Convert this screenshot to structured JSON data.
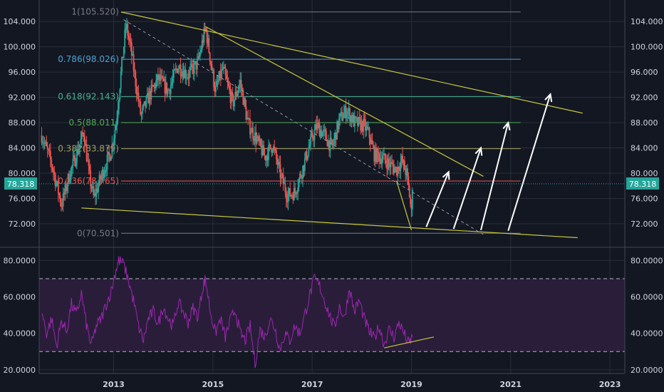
{
  "colors": {
    "background": "#131722",
    "grid": "#2a2e39",
    "axis_text": "#d1d4dc",
    "candle_up": "#26a69a",
    "candle_down": "#ef5350",
    "trendline": "#c8c83a",
    "rsi_line": "#9c27b0",
    "rsi_band": "#2a1d3a",
    "arrow": "#ffffff",
    "price_tag": "#26a69a"
  },
  "chart_data": [
    {
      "type": "candlestick",
      "name": "price",
      "x_ticks": [
        "2013",
        "2015",
        "2017",
        "2019",
        "2021",
        "2023"
      ],
      "y_ticks": [
        "72.000",
        "76.000",
        "80.000",
        "84.000",
        "88.000",
        "92.000",
        "96.000",
        "100.000",
        "104.000"
      ],
      "ylim": [
        68.5,
        106.5
      ],
      "xlim": [
        2011.5,
        2023.3
      ],
      "current_price": {
        "label": "78.318",
        "value": 78.318
      },
      "fibonacci": [
        {
          "label": "1(105.520)",
          "value": 105.52,
          "color": "#787b86"
        },
        {
          "label": "0.786(98.026)",
          "value": 98.026,
          "color": "#4fa3d1"
        },
        {
          "label": "0.618(92.143)",
          "value": 92.143,
          "color": "#4caf90"
        },
        {
          "label": "0.5(88.011)",
          "value": 88.011,
          "color": "#4caf50"
        },
        {
          "label": "0.382(83.879)",
          "value": 83.879,
          "color": "#a0a060"
        },
        {
          "label": "0.236(78.765)",
          "value": 78.765,
          "color": "#ef5350"
        },
        {
          "label": "0(70.501)",
          "value": 70.501,
          "color": "#787b86"
        }
      ],
      "trendlines": [
        {
          "x": [
            2013.15,
            2022.45
          ],
          "y": [
            105.5,
            89.5
          ]
        },
        {
          "x": [
            2012.35,
            2022.35
          ],
          "y": [
            74.5,
            69.8
          ]
        },
        {
          "x": [
            2014.85,
            2020.45
          ],
          "y": [
            103.2,
            79.5
          ]
        },
        {
          "x": [
            2018.7,
            2019.0
          ],
          "y": [
            78.8,
            71.0
          ]
        }
      ],
      "dashed_trendline": {
        "x": [
          2013.2,
          2020.45
        ],
        "y": [
          104.3,
          70.3
        ]
      },
      "projection_arrows": [
        {
          "x": [
            2019.3,
            2019.75
          ],
          "y": [
            71.5,
            80.2
          ]
        },
        {
          "x": [
            2019.85,
            2020.4
          ],
          "y": [
            71.2,
            84.0
          ]
        },
        {
          "x": [
            2020.4,
            2020.95
          ],
          "y": [
            71.0,
            88.0
          ]
        },
        {
          "x": [
            2020.95,
            2021.8
          ],
          "y": [
            70.9,
            92.5
          ]
        }
      ],
      "price_path": [
        [
          2011.55,
          86.0
        ],
        [
          2011.75,
          81.5
        ],
        [
          2011.95,
          75.0
        ],
        [
          2012.1,
          79.5
        ],
        [
          2012.25,
          83.0
        ],
        [
          2012.4,
          86.5
        ],
        [
          2012.5,
          80.0
        ],
        [
          2012.6,
          76.0
        ],
        [
          2012.75,
          79.5
        ],
        [
          2012.95,
          83.5
        ],
        [
          2013.05,
          88.0
        ],
        [
          2013.15,
          96.0
        ],
        [
          2013.25,
          103.5
        ],
        [
          2013.35,
          99.5
        ],
        [
          2013.45,
          94.0
        ],
        [
          2013.55,
          89.0
        ],
        [
          2013.7,
          92.0
        ],
        [
          2013.9,
          95.0
        ],
        [
          2014.1,
          93.0
        ],
        [
          2014.3,
          97.0
        ],
        [
          2014.5,
          95.5
        ],
        [
          2014.7,
          97.5
        ],
        [
          2014.85,
          103.0
        ],
        [
          2014.95,
          98.0
        ],
        [
          2015.05,
          93.0
        ],
        [
          2015.2,
          96.5
        ],
        [
          2015.4,
          91.0
        ],
        [
          2015.55,
          94.5
        ],
        [
          2015.7,
          88.0
        ],
        [
          2015.9,
          85.0
        ],
        [
          2016.05,
          82.5
        ],
        [
          2016.2,
          84.5
        ],
        [
          2016.35,
          80.0
        ],
        [
          2016.5,
          76.5
        ],
        [
          2016.65,
          77.0
        ],
        [
          2016.8,
          80.5
        ],
        [
          2016.95,
          84.5
        ],
        [
          2017.1,
          87.5
        ],
        [
          2017.25,
          86.0
        ],
        [
          2017.4,
          84.0
        ],
        [
          2017.55,
          88.5
        ],
        [
          2017.7,
          90.0
        ],
        [
          2017.85,
          88.0
        ],
        [
          2018.05,
          87.5
        ],
        [
          2018.15,
          86.0
        ],
        [
          2018.25,
          83.0
        ],
        [
          2018.4,
          82.5
        ],
        [
          2018.55,
          81.5
        ],
        [
          2018.7,
          80.5
        ],
        [
          2018.8,
          82.0
        ],
        [
          2018.9,
          80.0
        ],
        [
          2018.97,
          76.0
        ],
        [
          2019.0,
          73.5
        ],
        [
          2019.02,
          78.3
        ]
      ]
    },
    {
      "type": "line",
      "name": "RSI",
      "y_ticks": [
        "20.0000",
        "40.0000",
        "60.0000",
        "80.0000"
      ],
      "ylim": [
        18,
        86
      ],
      "band": [
        30,
        70
      ],
      "trendline": {
        "x": [
          2018.45,
          2019.45
        ],
        "y": [
          32,
          38
        ]
      },
      "points": [
        [
          2011.55,
          52
        ],
        [
          2011.65,
          40
        ],
        [
          2011.75,
          48
        ],
        [
          2011.85,
          33
        ],
        [
          2011.95,
          47
        ],
        [
          2012.05,
          41
        ],
        [
          2012.15,
          56
        ],
        [
          2012.25,
          50
        ],
        [
          2012.35,
          62
        ],
        [
          2012.45,
          45
        ],
        [
          2012.55,
          33
        ],
        [
          2012.65,
          44
        ],
        [
          2012.75,
          48
        ],
        [
          2012.85,
          56
        ],
        [
          2012.95,
          63
        ],
        [
          2013.05,
          75
        ],
        [
          2013.1,
          80
        ],
        [
          2013.2,
          78
        ],
        [
          2013.3,
          69
        ],
        [
          2013.4,
          58
        ],
        [
          2013.5,
          44
        ],
        [
          2013.6,
          36
        ],
        [
          2013.7,
          48
        ],
        [
          2013.8,
          52
        ],
        [
          2013.9,
          45
        ],
        [
          2014.0,
          55
        ],
        [
          2014.1,
          48
        ],
        [
          2014.2,
          44
        ],
        [
          2014.3,
          57
        ],
        [
          2014.4,
          52
        ],
        [
          2014.5,
          46
        ],
        [
          2014.6,
          54
        ],
        [
          2014.7,
          49
        ],
        [
          2014.8,
          66
        ],
        [
          2014.85,
          70
        ],
        [
          2014.95,
          52
        ],
        [
          2015.05,
          40
        ],
        [
          2015.15,
          48
        ],
        [
          2015.25,
          38
        ],
        [
          2015.35,
          47
        ],
        [
          2015.45,
          53
        ],
        [
          2015.55,
          40
        ],
        [
          2015.65,
          36
        ],
        [
          2015.75,
          44
        ],
        [
          2015.85,
          23
        ],
        [
          2015.95,
          42
        ],
        [
          2016.05,
          38
        ],
        [
          2016.15,
          48
        ],
        [
          2016.25,
          43
        ],
        [
          2016.35,
          31
        ],
        [
          2016.45,
          40
        ],
        [
          2016.55,
          36
        ],
        [
          2016.65,
          44
        ],
        [
          2016.75,
          40
        ],
        [
          2016.85,
          50
        ],
        [
          2016.95,
          61
        ],
        [
          2017.05,
          70
        ],
        [
          2017.15,
          66
        ],
        [
          2017.25,
          58
        ],
        [
          2017.35,
          50
        ],
        [
          2017.45,
          43
        ],
        [
          2017.55,
          55
        ],
        [
          2017.65,
          48
        ],
        [
          2017.75,
          65
        ],
        [
          2017.85,
          52
        ],
        [
          2017.95,
          58
        ],
        [
          2018.05,
          48
        ],
        [
          2018.15,
          41
        ],
        [
          2018.25,
          37
        ],
        [
          2018.35,
          44
        ],
        [
          2018.45,
          34
        ],
        [
          2018.55,
          42
        ],
        [
          2018.65,
          38
        ],
        [
          2018.75,
          46
        ],
        [
          2018.85,
          40
        ],
        [
          2018.95,
          34
        ],
        [
          2019.02,
          38
        ]
      ]
    }
  ]
}
